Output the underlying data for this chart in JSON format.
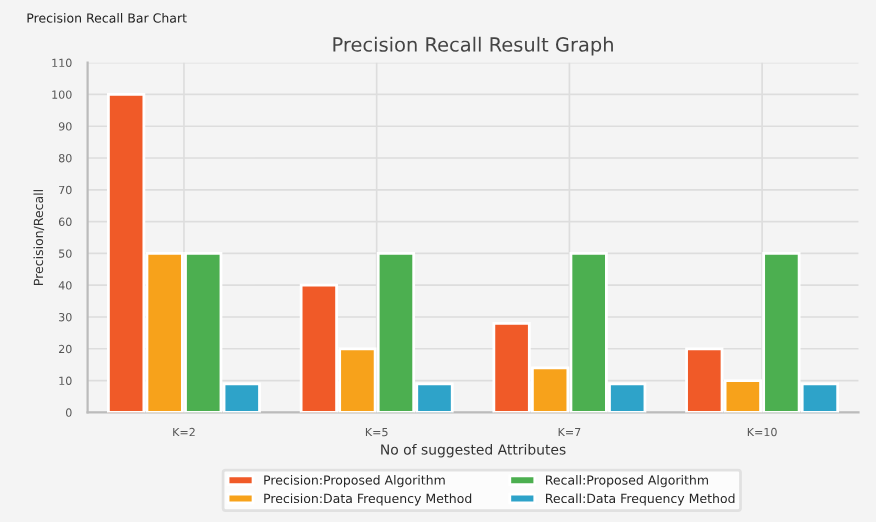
{
  "chart_data": {
    "type": "bar",
    "title": "Precision Recall Result Graph",
    "xlabel": "No of suggested Attributes",
    "ylabel": "Precision/Recall",
    "annotations": [
      "Precision Recall Bar Chart"
    ],
    "categories": [
      "K=2",
      "K=5",
      "K=7",
      "K=10"
    ],
    "series": [
      {
        "name": "Precision:Proposed Algorithm",
        "color": "#f05a28",
        "values": [
          100,
          40,
          28,
          20
        ]
      },
      {
        "name": "Precision:Data Frequency Method",
        "color": "#f7a21b",
        "values": [
          50,
          20,
          14,
          10
        ]
      },
      {
        "name": "Recall:Proposed Algorithm",
        "color": "#4caf50",
        "values": [
          50,
          50,
          50,
          50
        ]
      },
      {
        "name": "Recall:Data Frequency Method",
        "color": "#2ea3c9",
        "values": [
          9,
          9,
          9,
          9
        ]
      }
    ],
    "ylim": [
      0,
      110
    ],
    "yticks": [
      0,
      10,
      20,
      30,
      40,
      50,
      60,
      70,
      80,
      90,
      100,
      110
    ],
    "grid": true,
    "legend": "bottom"
  }
}
